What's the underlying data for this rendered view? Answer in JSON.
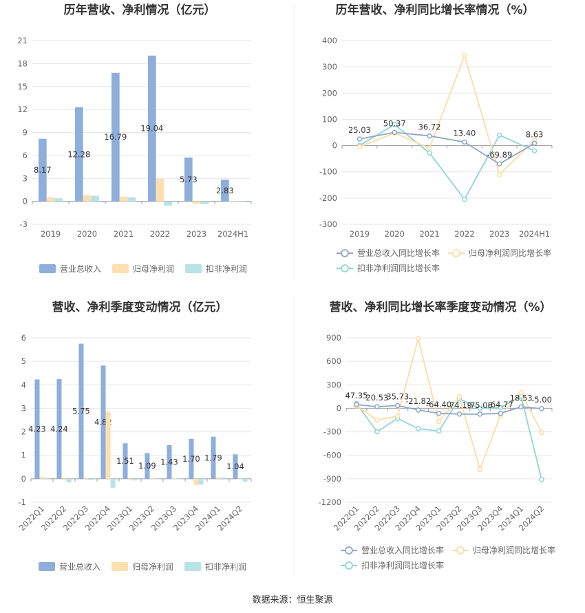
{
  "colors": {
    "revenue": "#8eaedb",
    "net_profit": "#fde0b0",
    "deducted_profit": "#b7e4e6",
    "revenue_line": "#8ea6cc",
    "net_line": "#fddca3",
    "deducted_line": "#8cd6d8",
    "grid": "#e6e6e6",
    "axis": "#999999"
  },
  "source_text": "数据来源：恒生聚源",
  "chart_data": [
    {
      "id": "annual-values",
      "type": "bar",
      "title": "历年营收、净利情况（亿元）",
      "categories": [
        "2019",
        "2020",
        "2021",
        "2022",
        "2023",
        "2024H1"
      ],
      "ylim": [
        -3,
        21
      ],
      "yticks": [
        -3,
        0,
        3,
        6,
        9,
        12,
        15,
        18,
        21
      ],
      "series": [
        {
          "name": "营业总收入",
          "values": [
            8.17,
            12.28,
            16.79,
            19.04,
            5.73,
            2.83
          ],
          "labels": [
            "8.17",
            "12.28",
            "16.79",
            "19.04",
            "5.73",
            "2.83"
          ]
        },
        {
          "name": "归母净利润",
          "values": [
            0.55,
            0.8,
            0.62,
            2.95,
            -0.3,
            0.02
          ]
        },
        {
          "name": "扣非净利润",
          "values": [
            0.4,
            0.72,
            0.52,
            -0.55,
            -0.35,
            -0.05
          ]
        }
      ],
      "legend_position": "bottom",
      "grid": true
    },
    {
      "id": "annual-growth",
      "type": "line",
      "title": "历年营收、净利同比增长率情况（%）",
      "categories": [
        "2019",
        "2020",
        "2021",
        "2022",
        "2023",
        "2024H1"
      ],
      "ylim": [
        -300,
        400
      ],
      "yticks": [
        -300,
        -200,
        -100,
        0,
        100,
        200,
        300,
        400
      ],
      "series": [
        {
          "name": "营业总收入同比增长率",
          "values": [
            25.03,
            50.37,
            36.72,
            13.4,
            -69.89,
            8.63
          ],
          "labels": [
            "25.03",
            "50.37",
            "36.72",
            "13.40",
            "-69.89",
            "8.63"
          ]
        },
        {
          "name": "归母净利润同比增长率",
          "values": [
            -5,
            48,
            -10,
            343,
            -110,
            20
          ]
        },
        {
          "name": "扣非净利润同比增长率",
          "values": [
            0,
            80,
            -28,
            -205,
            40,
            -20
          ]
        }
      ],
      "legend_position": "bottom",
      "grid": true
    },
    {
      "id": "quarterly-values",
      "type": "bar",
      "title": "营收、净利季度变动情况（亿元）",
      "categories": [
        "2022Q1",
        "2022Q2",
        "2022Q3",
        "2022Q4",
        "2023Q1",
        "2023Q2",
        "2023Q3",
        "2023Q4",
        "2024Q1",
        "2024Q2"
      ],
      "ylim": [
        -1,
        6
      ],
      "yticks": [
        -1,
        0,
        1,
        2,
        3,
        4,
        5,
        6
      ],
      "series": [
        {
          "name": "营业总收入",
          "values": [
            4.23,
            4.24,
            5.75,
            4.82,
            1.51,
            1.09,
            1.43,
            1.7,
            1.79,
            1.04
          ],
          "labels": [
            "4.23",
            "4.24",
            "5.75",
            "4.82",
            "1.51",
            "1.09",
            "1.43",
            "1.70",
            "1.79",
            "1.04"
          ]
        },
        {
          "name": "归母净利润",
          "values": [
            0.08,
            -0.05,
            0.03,
            2.86,
            -0.05,
            0.01,
            0.01,
            -0.28,
            0.06,
            -0.03
          ]
        },
        {
          "name": "扣非净利润",
          "values": [
            0.03,
            -0.15,
            -0.06,
            -0.38,
            -0.07,
            0.0,
            -0.02,
            -0.25,
            0.05,
            -0.12
          ]
        }
      ],
      "legend_position": "bottom",
      "grid": true
    },
    {
      "id": "quarterly-growth",
      "type": "line",
      "title": "营收、净利同比增长率季度变动情况（%）",
      "categories": [
        "2022Q1",
        "2022Q2",
        "2022Q3",
        "2022Q4",
        "2023Q1",
        "2023Q2",
        "2023Q3",
        "2023Q4",
        "2024Q1",
        "2024Q2"
      ],
      "ylim": [
        -1200,
        900
      ],
      "yticks": [
        -1200,
        -900,
        -600,
        -300,
        0,
        300,
        600,
        900
      ],
      "series": [
        {
          "name": "营业总收入同比增长率",
          "values": [
            47.35,
            20.53,
            35.73,
            -21.82,
            -64.4,
            -74.19,
            -75.08,
            -64.77,
            18.53,
            -5.0
          ],
          "labels": [
            "47.35",
            "20.53",
            "35.73",
            "-21.82",
            "-64.40",
            "-74.19",
            "-75.08",
            "-64.77",
            "18.53",
            "-5.00"
          ]
        },
        {
          "name": "归母净利润同比增长率",
          "values": [
            30,
            -150,
            -100,
            890,
            -170,
            150,
            -780,
            -90,
            200,
            -310
          ]
        },
        {
          "name": "扣非净利润同比增长率",
          "values": [
            60,
            -300,
            -130,
            -260,
            -290,
            120,
            0,
            10,
            150,
            -910
          ]
        }
      ],
      "legend_position": "bottom",
      "grid": true
    }
  ]
}
